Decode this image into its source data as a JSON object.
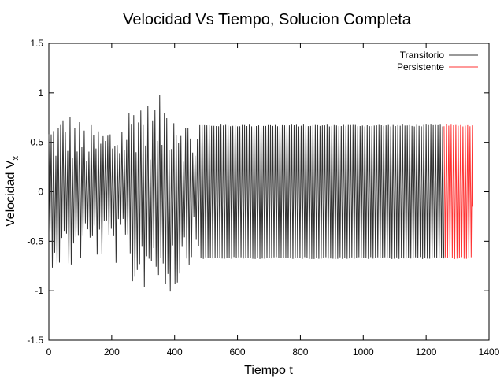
{
  "chart_data": {
    "type": "line",
    "title": "Velocidad Vs Tiempo, Solucion Completa",
    "xlabel": "Tiempo t",
    "ylabel": "Velocidad V",
    "ylabel_subscript": "x",
    "xlim": [
      0,
      1400
    ],
    "ylim": [
      -1.5,
      1.5
    ],
    "x_ticks": [
      0,
      200,
      400,
      600,
      800,
      1000,
      1200,
      1400
    ],
    "y_ticks": [
      -1.5,
      -1,
      -0.5,
      0,
      0.5,
      1,
      1.5
    ],
    "x_tick_labels": [
      "0",
      "200",
      "400",
      "600",
      "800",
      "1000",
      "1200",
      "1400"
    ],
    "y_tick_labels": [
      "-1.5",
      "-1",
      "-0.5",
      "0",
      "0.5",
      "1",
      "1.5"
    ],
    "grid": false,
    "legend_position": "top-right",
    "series": [
      {
        "name": "Transitorio",
        "color": "#333333",
        "x_range": [
          0,
          1257
        ],
        "period": 7.5,
        "steady_amplitude": 0.68,
        "transient_envelope": [
          {
            "x": 0,
            "amp": 0.75
          },
          {
            "x": 60,
            "amp": 0.85
          },
          {
            "x": 120,
            "amp": 0.68
          },
          {
            "x": 180,
            "amp": 0.7
          },
          {
            "x": 240,
            "amp": 0.78
          },
          {
            "x": 280,
            "amp": 1.12
          },
          {
            "x": 320,
            "amp": 0.9
          },
          {
            "x": 360,
            "amp": 1.0
          },
          {
            "x": 400,
            "amp": 1.08
          },
          {
            "x": 440,
            "amp": 0.75
          },
          {
            "x": 480,
            "amp": 0.68
          }
        ]
      },
      {
        "name": "Persistente",
        "color": "#ff3333",
        "x_range": [
          1257,
          1347
        ],
        "period": 7.5,
        "steady_amplitude": 0.68
      }
    ]
  }
}
